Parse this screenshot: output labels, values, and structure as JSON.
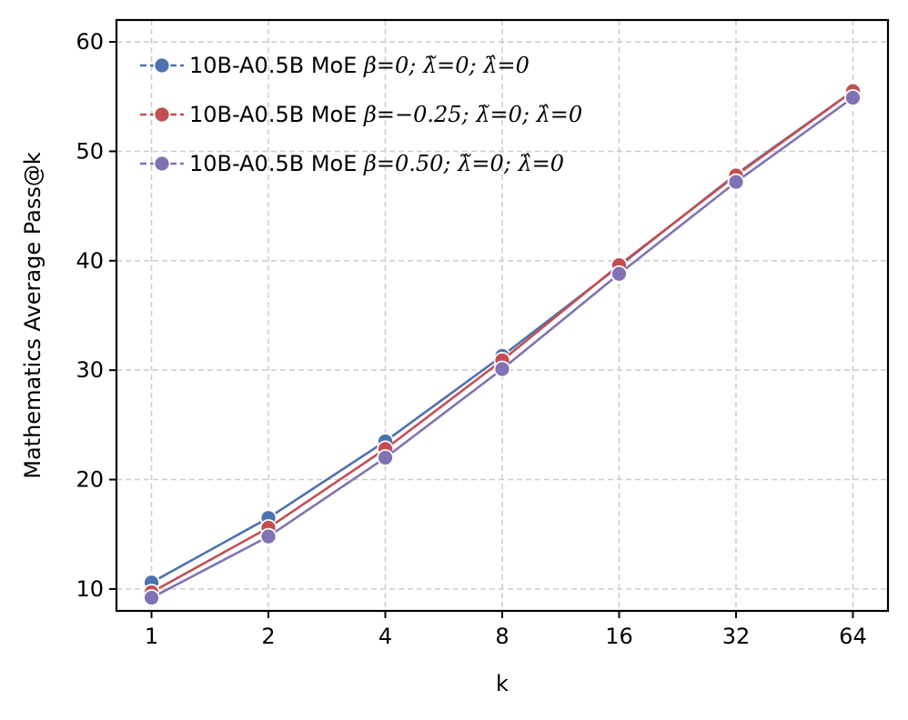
{
  "chart_data": {
    "type": "line",
    "title": "",
    "xlabel": "k",
    "ylabel": "Mathematics Average Pass@k",
    "x_scale": "log2",
    "categories": [
      "1",
      "2",
      "4",
      "8",
      "16",
      "32",
      "64"
    ],
    "x": [
      1,
      2,
      4,
      8,
      16,
      32,
      64
    ],
    "yticks": [
      "10",
      "20",
      "30",
      "40",
      "50",
      "60"
    ],
    "ylim": [
      8,
      62
    ],
    "grid": true,
    "legend_position": "top-left",
    "series": [
      {
        "name": "10B-A0.5B MoE β=0; λ̃=0; λ̂=0",
        "name_text": "10B-A0.5B MoE ",
        "name_math": "β=0;  λ̃=0;  λ̂=0",
        "color": "#4c72b0",
        "values": [
          10.6,
          16.5,
          23.5,
          31.3,
          39.5,
          47.9,
          55.5
        ]
      },
      {
        "name": "10B-A0.5B MoE β=−0.25; λ̃=0; λ̂=0",
        "name_text": "10B-A0.5B MoE ",
        "name_math": "β=−0.25;  λ̃=0;  λ̂=0",
        "color": "#c44e52",
        "values": [
          9.7,
          15.6,
          22.8,
          30.9,
          39.6,
          47.8,
          55.5
        ]
      },
      {
        "name": "10B-A0.5B MoE β=0.50; λ̃=0; λ̂=0",
        "name_text": "10B-A0.5B MoE ",
        "name_math": "β=0.50;  λ̃=0;  λ̂=0",
        "color": "#8172b3",
        "values": [
          9.2,
          14.8,
          22.0,
          30.1,
          38.8,
          47.2,
          54.9
        ]
      }
    ]
  }
}
